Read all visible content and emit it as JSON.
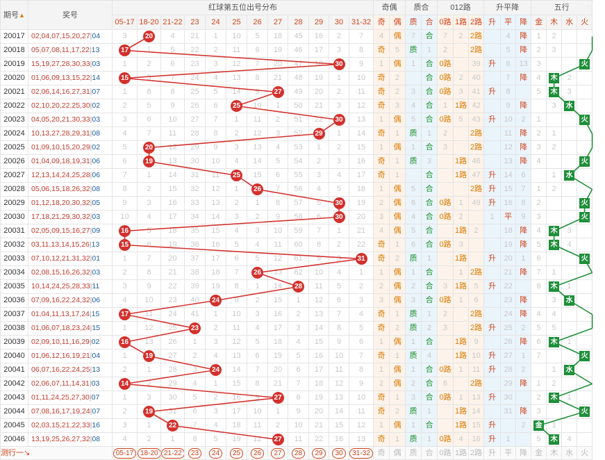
{
  "header": {
    "issue_label": "期号",
    "sort_icon": "▲",
    "prize_label": "奖号",
    "dist_label": "红球第五位出号分布",
    "oddeven_label": "奇偶",
    "primecomp_label": "质合",
    "route_label": "012路",
    "trend_label": "升平降",
    "wuxing_label": "五行",
    "ranges": [
      "05-17",
      "18-20",
      "21-22",
      "23",
      "24",
      "25",
      "26",
      "27",
      "28",
      "29",
      "30",
      "31-32"
    ],
    "oe": [
      "奇",
      "偶"
    ],
    "pc": [
      "质",
      "合"
    ],
    "rt": [
      "0路",
      "1路",
      "2路"
    ],
    "tr": [
      "升",
      "平",
      "降"
    ],
    "wx": [
      "金",
      "木",
      "水",
      "火",
      "土"
    ]
  },
  "rows": [
    {
      "issue": "20017",
      "main": "02,04,07,15,20,27",
      "blue": "04",
      "pos": 1,
      "ball": "20",
      "miss": [
        "3",
        "",
        "4",
        "21",
        "1",
        "10",
        "5",
        "18",
        "45",
        "16",
        "2",
        "7"
      ],
      "oe": "偶",
      "pc": "合",
      "rt": "2路",
      "trd": "降",
      "wx": "土",
      "sub": [
        "4",
        "1",
        "7",
        "1",
        "7",
        "2",
        "37",
        "",
        "4",
        "11",
        "1",
        "2",
        ""
      ]
    },
    {
      "issue": "20018",
      "main": "05,07,08,11,17,22",
      "blue": "13",
      "pos": 0,
      "ball": "17",
      "miss": [
        "",
        "1",
        "5",
        "22",
        "2",
        "11",
        "6",
        "19",
        "46",
        "17",
        "3",
        "8"
      ],
      "oe": "奇",
      "pc": "质",
      "rt": "2路",
      "trd": "降",
      "wx": "土",
      "sub": [
        "",
        "5",
        "",
        "1",
        "2",
        "",
        "38",
        "",
        "5",
        "12",
        "2",
        "3",
        ""
      ]
    },
    {
      "issue": "20019",
      "main": "15,19,27,28,30,33",
      "blue": "03",
      "pos": 10,
      "ball": "30",
      "miss": [
        "1",
        "2",
        "6",
        "23",
        "3",
        "12",
        "7",
        "20",
        "47",
        "18",
        "",
        "9"
      ],
      "oe": "偶",
      "pc": "合",
      "rt": "0路",
      "trd": "升",
      "wx": "火",
      "sub": [
        "1",
        "",
        "1",
        "",
        "3",
        "",
        "39",
        "1",
        "6",
        "13",
        "3",
        "",
        ""
      ]
    },
    {
      "issue": "20020",
      "main": "01,06,09,13,15,22",
      "blue": "14",
      "pos": 0,
      "ball": "15",
      "miss": [
        "",
        "3",
        "7",
        "24",
        "4",
        "13",
        "8",
        "21",
        "48",
        "19",
        "1",
        "10"
      ],
      "oe": "奇",
      "pc": "合",
      "rt": "0路",
      "trd": "降",
      "wx": "木",
      "sub": [
        "",
        "2",
        "",
        "",
        "10",
        "2",
        "40",
        "",
        "7",
        "",
        "4",
        "1",
        "2"
      ]
    },
    {
      "issue": "20021",
      "main": "02,06,14,16,27,31",
      "blue": "07",
      "pos": 7,
      "ball": "27",
      "miss": [
        "1",
        "8",
        "8",
        "25",
        "5",
        "14",
        "9",
        "",
        "49",
        "20",
        "2",
        "11"
      ],
      "oe": "奇",
      "pc": "合",
      "rt": "0路",
      "trd": "升",
      "wx": "木",
      "sub": [
        "",
        "2",
        "3",
        "",
        "11",
        "3",
        "41",
        "1",
        "8",
        "",
        "5",
        "2",
        "3"
      ]
    },
    {
      "issue": "20022",
      "main": "02,10,20,22,25,30",
      "blue": "02",
      "pos": 5,
      "ball": "25",
      "miss": [
        "2",
        "5",
        "9",
        "26",
        "6",
        "",
        "10",
        "1",
        "50",
        "21",
        "3",
        "12"
      ],
      "oe": "奇",
      "pc": "合",
      "rt": "1路",
      "trd": "降",
      "wx": "水",
      "sub": [
        "",
        "3",
        "4",
        "",
        "1",
        "2",
        "42",
        "",
        "9",
        "1",
        "",
        "3",
        "4"
      ]
    },
    {
      "issue": "20023",
      "main": "04,05,20,21,30,33",
      "blue": "03",
      "pos": 10,
      "ball": "30",
      "miss": [
        "3",
        "6",
        "10",
        "27",
        "7",
        "1",
        "11",
        "2",
        "51",
        "22",
        "",
        "13"
      ],
      "oe": "偶",
      "pc": "合",
      "rt": "0路",
      "trd": "升",
      "wx": "火",
      "sub": [
        "1",
        "",
        "5",
        "",
        "1",
        "5",
        "43",
        "1",
        "10",
        "2",
        "1",
        "",
        ""
      ]
    },
    {
      "issue": "20024",
      "main": "10,13,27,28,29,31",
      "blue": "08",
      "pos": 9,
      "ball": "29",
      "miss": [
        "4",
        "7",
        "11",
        "28",
        "8",
        "2",
        "12",
        "3",
        "52",
        "",
        "1",
        "14"
      ],
      "oe": "奇",
      "pc": "质",
      "rt": "2路",
      "trd": "降",
      "wx": "土",
      "sub": [
        "",
        "1",
        "",
        "1",
        "2",
        "",
        "44",
        "",
        "11",
        "3",
        "2",
        "1",
        ""
      ]
    },
    {
      "issue": "20025",
      "main": "01,09,10,15,20,29",
      "blue": "02",
      "pos": 1,
      "ball": "20",
      "miss": [
        "5",
        "",
        "12",
        "29",
        "9",
        "3",
        "13",
        "4",
        "53",
        "1",
        "2",
        "15"
      ],
      "oe": "偶",
      "pc": "合",
      "rt": "2路",
      "trd": "降",
      "wx": "土",
      "sub": [
        "1",
        "",
        "1",
        "2",
        "3",
        "",
        "45",
        "",
        "12",
        "4",
        "3",
        "2",
        ""
      ]
    },
    {
      "issue": "20026",
      "main": "01,04,09,18,19,31",
      "blue": "06",
      "pos": 1,
      "ball": "19",
      "miss": [
        "6",
        "",
        "13",
        "30",
        "10",
        "4",
        "14",
        "5",
        "54",
        "2",
        "3",
        "16"
      ],
      "oe": "奇",
      "pc": "质",
      "rt": "1路",
      "trd": "降",
      "wx": "火",
      "sub": [
        "",
        "1",
        "",
        "3",
        "",
        "3",
        "46",
        "",
        "13",
        "5",
        "4",
        "",
        ""
      ]
    },
    {
      "issue": "20027",
      "main": "12,13,14,24,25,28",
      "blue": "06",
      "pos": 5,
      "ball": "25",
      "miss": [
        "7",
        "1",
        "14",
        "31",
        "11",
        "",
        "15",
        "6",
        "55",
        "3",
        "4",
        "17"
      ],
      "oe": "奇",
      "pc": "合",
      "rt": "1路",
      "trd": "升",
      "wx": "水",
      "sub": [
        "",
        "1",
        "",
        "4",
        "",
        "2",
        "47",
        "1",
        "14",
        "6",
        "",
        "1",
        "2"
      ]
    },
    {
      "issue": "20028",
      "main": "05,06,15,18,26,32",
      "blue": "08",
      "pos": 6,
      "ball": "26",
      "miss": [
        "8",
        "2",
        "15",
        "32",
        "12",
        "1",
        "",
        "7",
        "56",
        "4",
        "5",
        "18"
      ],
      "oe": "偶",
      "pc": "合",
      "rt": "2路",
      "trd": "升",
      "wx": "土",
      "sub": [
        "1",
        "",
        "5",
        "1",
        "",
        "",
        "48",
        "2",
        "15",
        "7",
        "1",
        "2",
        ""
      ]
    },
    {
      "issue": "20029",
      "main": "01,12,18,20,30,32",
      "blue": "05",
      "pos": 10,
      "ball": "30",
      "miss": [
        "9",
        "3",
        "16",
        "33",
        "13",
        "2",
        "1",
        "8",
        "57",
        "5",
        "",
        "19"
      ],
      "oe": "偶",
      "pc": "合",
      "rt": "0路",
      "trd": "升",
      "wx": "火",
      "sub": [
        "2",
        "",
        "6",
        "",
        "2",
        "1",
        "49",
        "3",
        "16",
        "8",
        "2",
        "",
        ""
      ]
    },
    {
      "issue": "20030",
      "main": "17,18,21,29,30,32",
      "blue": "03",
      "pos": 10,
      "ball": "30",
      "miss": [
        "10",
        "4",
        "17",
        "34",
        "14",
        "3",
        "2",
        "9",
        "58",
        "6",
        "",
        "20"
      ],
      "oe": "偶",
      "pc": "合",
      "rt": "0路",
      "trd": "平",
      "wx": "火",
      "sub": [
        "3",
        "",
        "4",
        "",
        "3",
        "2",
        "",
        "1",
        "17",
        "9",
        "3",
        "",
        ""
      ]
    },
    {
      "issue": "20031",
      "main": "02,05,09,15,16,27",
      "blue": "09",
      "pos": 0,
      "ball": "16",
      "miss": [
        "",
        "5",
        "18",
        "35",
        "15",
        "4",
        "3",
        "10",
        "59",
        "7",
        "1",
        "21"
      ],
      "oe": "偶",
      "pc": "合",
      "rt": "1路",
      "trd": "降",
      "wx": "木",
      "sub": [
        "4",
        "",
        "5",
        "1",
        "",
        "3",
        "2",
        "",
        "18",
        "",
        "4",
        "1",
        "3"
      ]
    },
    {
      "issue": "20032",
      "main": "03,11,13,14,15,26",
      "blue": "13",
      "pos": 0,
      "ball": "15",
      "miss": [
        "",
        "6",
        "19",
        "36",
        "16",
        "5",
        "4",
        "11",
        "60",
        "8",
        "2",
        "22"
      ],
      "oe": "奇",
      "pc": "合",
      "rt": "0路",
      "trd": "降",
      "wx": "木",
      "sub": [
        "",
        "1",
        "6",
        "",
        "4",
        "3",
        "",
        "",
        "19",
        "",
        "5",
        "2",
        "4"
      ]
    },
    {
      "issue": "20033",
      "main": "07,10,12,21,31,32",
      "blue": "01",
      "pos": 11,
      "ball": "31",
      "miss": [
        "1",
        "7",
        "20",
        "37",
        "17",
        "6",
        "5",
        "12",
        "61",
        "9",
        "3",
        ""
      ],
      "oe": "奇",
      "pc": "质",
      "rt": "1路",
      "trd": "升",
      "wx": "火",
      "sub": [
        "",
        "2",
        "",
        "1",
        "",
        "5",
        "",
        "1",
        "20",
        "1",
        "6",
        "",
        ""
      ]
    },
    {
      "issue": "20034",
      "main": "02,08,15,16,26,32",
      "blue": "03",
      "pos": 6,
      "ball": "26",
      "miss": [
        "2",
        "8",
        "21",
        "38",
        "18",
        "7",
        "",
        "13",
        "62",
        "10",
        "4",
        "1"
      ],
      "oe": "偶",
      "pc": "合",
      "rt": "2路",
      "trd": "降",
      "wx": "土",
      "sub": [
        "1",
        "",
        "1",
        "2",
        "",
        "1",
        "4",
        "",
        "21",
        "2",
        "7",
        "1",
        ""
      ]
    },
    {
      "issue": "20035",
      "main": "10,14,24,25,28,33",
      "blue": "11",
      "pos": 8,
      "ball": "28",
      "miss": [
        "3",
        "9",
        "22",
        "39",
        "19",
        "8",
        "1",
        "14",
        "",
        "11",
        "5",
        "2"
      ],
      "oe": "偶",
      "pc": "合",
      "rt": "1路",
      "trd": "升",
      "wx": "木",
      "sub": [
        "2",
        "",
        "2",
        "",
        "3",
        "1",
        "5",
        "1",
        "22",
        "",
        "8",
        "1",
        "1"
      ]
    },
    {
      "issue": "20036",
      "main": "07,09,16,22,24,32",
      "blue": "06",
      "pos": 4,
      "ball": "24",
      "miss": [
        "4",
        "10",
        "23",
        "40",
        "",
        "9",
        "2",
        "15",
        "1",
        "12",
        "6",
        "3"
      ],
      "oe": "偶",
      "pc": "合",
      "rt": "0路",
      "trd": "降",
      "wx": "水",
      "sub": [
        "3",
        "",
        "3",
        "",
        "4",
        "1",
        "6",
        "",
        "23",
        "1",
        "",
        "3",
        "2"
      ]
    },
    {
      "issue": "20037",
      "main": "01,04,11,13,17,24",
      "blue": "15",
      "pos": 0,
      "ball": "17",
      "miss": [
        "",
        "11",
        "24",
        "41",
        "1",
        "10",
        "3",
        "16",
        "2",
        "13",
        "7",
        "4"
      ],
      "oe": "奇",
      "pc": "质",
      "rt": "2路",
      "trd": "降",
      "wx": "土",
      "sub": [
        "",
        "1",
        "",
        "1",
        "2",
        "",
        "7",
        "",
        "24",
        "1",
        "4",
        "4",
        ""
      ]
    },
    {
      "issue": "20038",
      "main": "01,06,07,18,23,24",
      "blue": "15",
      "pos": 3,
      "ball": "23",
      "miss": [
        "1",
        "12",
        "25",
        "",
        "2",
        "11",
        "4",
        "17",
        "3",
        "14",
        "8",
        "5"
      ],
      "oe": "奇",
      "pc": "质",
      "rt": "2路",
      "trd": "升",
      "wx": "土",
      "sub": [
        "",
        "2",
        "",
        "2",
        "3",
        "",
        "8",
        "1",
        "25",
        "2",
        "5",
        "5",
        ""
      ]
    },
    {
      "issue": "20039",
      "main": "02,09,10,11,16,29",
      "blue": "02",
      "pos": 0,
      "ball": "16",
      "miss": [
        "",
        "13",
        "26",
        "1",
        "3",
        "12",
        "5",
        "18",
        "4",
        "15",
        "9",
        "6"
      ],
      "oe": "偶",
      "pc": "合",
      "rt": "1路",
      "trd": "降",
      "wx": "木",
      "sub": [
        "1",
        "",
        "1",
        "3",
        "",
        "1",
        "9",
        "",
        "26",
        "",
        "6",
        "6",
        "1"
      ]
    },
    {
      "issue": "20040",
      "main": "01,06,12,16,19,21",
      "blue": "04",
      "pos": 1,
      "ball": "19",
      "miss": [
        "1",
        "",
        "27",
        "2",
        "4",
        "13",
        "6",
        "19",
        "5",
        "16",
        "10",
        "7"
      ],
      "oe": "奇",
      "pc": "质",
      "rt": "1路",
      "trd": "升",
      "wx": "火",
      "sub": [
        "",
        "1",
        "",
        "4",
        "",
        "2",
        "10",
        "1",
        "27",
        "1",
        "7",
        "",
        ""
      ]
    },
    {
      "issue": "20041",
      "main": "06,07,16,22,24,25",
      "blue": "13",
      "pos": 4,
      "ball": "24",
      "miss": [
        "2",
        "1",
        "28",
        "3",
        "",
        "14",
        "7",
        "20",
        "6",
        "17",
        "11",
        "8"
      ],
      "oe": "偶",
      "pc": "合",
      "rt": "0路",
      "trd": "升",
      "wx": "水",
      "sub": [
        "1",
        "",
        "1",
        "",
        "5",
        "1",
        "11",
        "2",
        "28",
        "2",
        "",
        "1",
        "2"
      ]
    },
    {
      "issue": "20042",
      "main": "02,06,07,11,14,31",
      "blue": "03",
      "pos": 0,
      "ball": "14",
      "miss": [
        "",
        "2",
        "29",
        "4",
        "1",
        "15",
        "8",
        "21",
        "7",
        "18",
        "12",
        "9"
      ],
      "oe": "偶",
      "pc": "合",
      "rt": "2路",
      "trd": "降",
      "wx": "土",
      "sub": [
        "2",
        "",
        "2",
        "1",
        "6",
        "",
        "12",
        "",
        "29",
        "3",
        "1",
        "2",
        ""
      ]
    },
    {
      "issue": "20043",
      "main": "01,11,24,25,27,30",
      "blue": "07",
      "pos": 7,
      "ball": "27",
      "miss": [
        "1",
        "3",
        "30",
        "5",
        "2",
        "16",
        "9",
        "",
        "8",
        "19",
        "13",
        "10"
      ],
      "oe": "奇",
      "pc": "合",
      "rt": "0路",
      "trd": "升",
      "wx": "木",
      "sub": [
        "",
        "1",
        "3",
        "",
        "7",
        "1",
        "13",
        "1",
        "30",
        "",
        "2",
        "3",
        "1"
      ]
    },
    {
      "issue": "20044",
      "main": "07,08,16,17,19,24",
      "blue": "07",
      "pos": 1,
      "ball": "19",
      "miss": [
        "2",
        "",
        "31",
        "6",
        "3",
        "17",
        "10",
        "1",
        "9",
        "20",
        "14",
        "11"
      ],
      "oe": "奇",
      "pc": "质",
      "rt": "1路",
      "trd": "降",
      "wx": "火",
      "sub": [
        "",
        "2",
        "",
        "1",
        "",
        "2",
        "14",
        "",
        "31",
        "1",
        "3",
        "",
        ""
      ]
    },
    {
      "issue": "20045",
      "main": "02,03,15,21,22,33",
      "blue": "16",
      "pos": 2,
      "ball": "22",
      "miss": [
        "3",
        "1",
        "",
        "7",
        "4",
        "18",
        "11",
        "2",
        "10",
        "21",
        "15",
        "12"
      ],
      "oe": "偶",
      "pc": "合",
      "rt": "1路",
      "trd": "升",
      "wx": "金",
      "sub": [
        "1",
        "",
        "1",
        "2",
        "",
        "3",
        "15",
        "1",
        "",
        "2",
        "4",
        "1",
        ""
      ]
    },
    {
      "issue": "20046",
      "main": "13,19,25,26,27,32",
      "blue": "08",
      "pos": 7,
      "ball": "27",
      "miss": [
        "4",
        "2",
        "1",
        "8",
        "5",
        "19",
        "12",
        "",
        "11",
        "22",
        "16",
        "13"
      ],
      "oe": "奇",
      "pc": "质",
      "rt": "0路",
      "trd": "升",
      "wx": "木",
      "sub": [
        "",
        "1",
        "",
        "1",
        "",
        "4",
        "16",
        "2",
        "1",
        "",
        "5",
        "2",
        "4"
      ]
    }
  ],
  "footer": {
    "label": "测行一",
    "arrow_icon": "↘"
  }
}
